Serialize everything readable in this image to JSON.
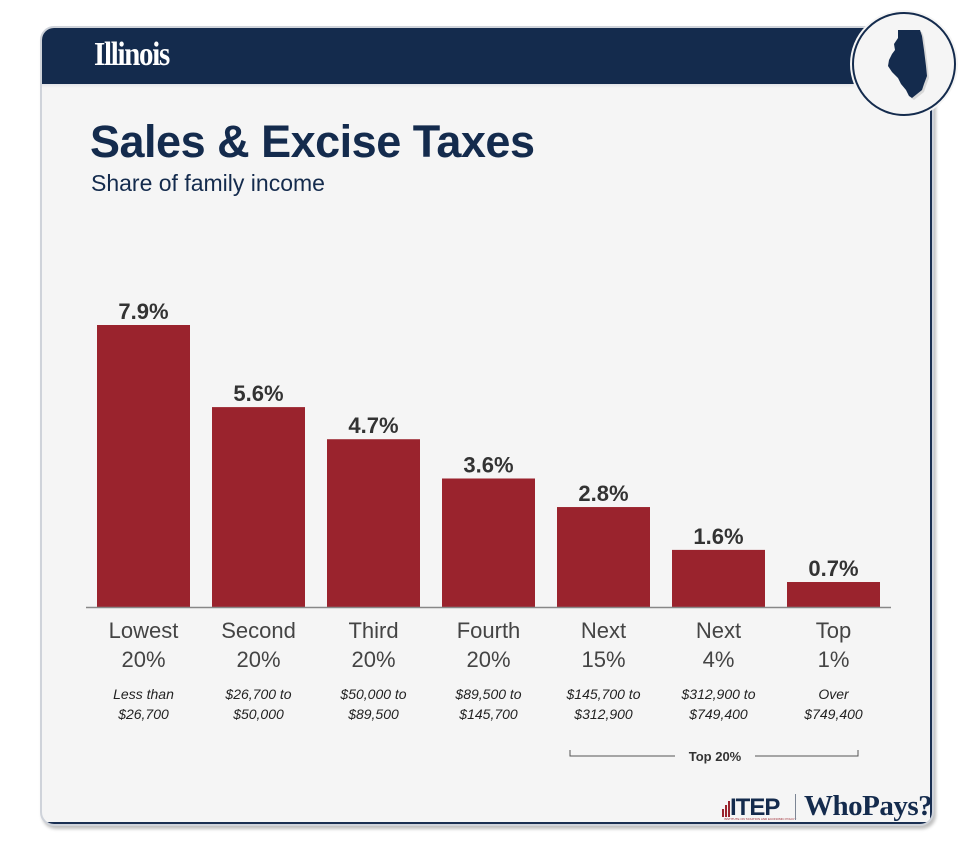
{
  "header": {
    "state_name": "Illinois",
    "state_icon": "illinois-map-icon"
  },
  "colors": {
    "navy": "#142b4d",
    "bar": "#9a232d",
    "background": "#f5f5f5",
    "label_text": "#333333"
  },
  "chart_data": {
    "type": "bar",
    "title": "Sales & Excise Taxes",
    "subtitle": "Share of family income",
    "xlabel": "",
    "ylabel": "",
    "ylim": [
      0,
      7.9
    ],
    "grid": false,
    "categories": [
      {
        "line1": "Lowest",
        "line2": "20%",
        "range1": "Less than",
        "range2": "$26,700"
      },
      {
        "line1": "Second",
        "line2": "20%",
        "range1": "$26,700 to",
        "range2": "$50,000"
      },
      {
        "line1": "Third",
        "line2": "20%",
        "range1": "$50,000 to",
        "range2": "$89,500"
      },
      {
        "line1": "Fourth",
        "line2": "20%",
        "range1": "$89,500 to",
        "range2": "$145,700"
      },
      {
        "line1": "Next",
        "line2": "15%",
        "range1": "$145,700 to",
        "range2": "$312,900"
      },
      {
        "line1": "Next",
        "line2": "4%",
        "range1": "$312,900 to",
        "range2": "$749,400"
      },
      {
        "line1": "Top",
        "line2": "1%",
        "range1": "Over",
        "range2": "$749,400"
      }
    ],
    "values": [
      7.9,
      5.6,
      4.7,
      3.6,
      2.8,
      1.6,
      0.7
    ],
    "value_labels": [
      "7.9%",
      "5.6%",
      "4.7%",
      "3.6%",
      "2.8%",
      "1.6%",
      "0.7%"
    ],
    "group_annotation": {
      "label": "Top 20%",
      "from_index": 4,
      "to_index": 6
    }
  },
  "footer": {
    "itep_label": "ITEP",
    "itep_tagline": "INSTITUTE ON TAXATION AND ECONOMIC POLICY",
    "whopays_label": "WhoPays?"
  }
}
